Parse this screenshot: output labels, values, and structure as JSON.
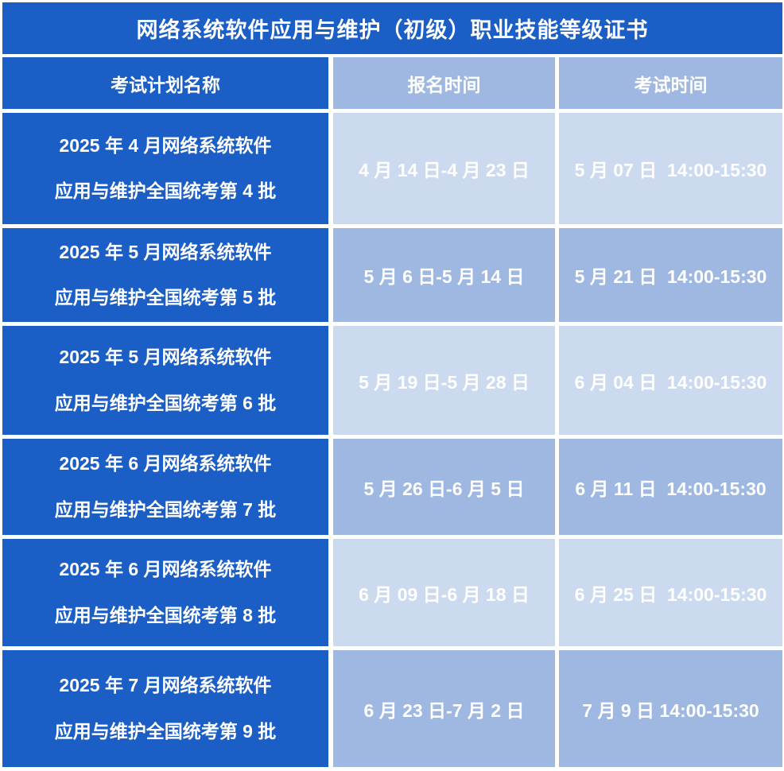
{
  "title": "网络系统软件应用与维护（初级）职业技能等级证书",
  "columns": {
    "plan_name": "考试计划名称",
    "registration_time": "报名时间",
    "exam_time": "考试时间"
  },
  "rows": [
    {
      "plan_line1": "2025 年 4 月网络系统软件",
      "plan_line2": "应用与维护全国统考第 4 批",
      "registration": "4 月 14 日-4 月 23 日",
      "exam": "5 月 07 日  14:00-15:30"
    },
    {
      "plan_line1": "2025 年 5 月网络系统软件",
      "plan_line2": "应用与维护全国统考第 5 批",
      "registration": "5 月 6 日-5 月 14 日",
      "exam": "5 月 21 日  14:00-15:30"
    },
    {
      "plan_line1": "2025 年 5 月网络系统软件",
      "plan_line2": "应用与维护全国统考第 6 批",
      "registration": "5 月 19 日-5 月 28 日",
      "exam": "6 月 04 日  14:00-15:30"
    },
    {
      "plan_line1": "2025 年 6 月网络系统软件",
      "plan_line2": "应用与维护全国统考第 7 批",
      "registration": "5 月 26 日-6 月 5 日",
      "exam": "6 月 11 日  14:00-15:30"
    },
    {
      "plan_line1": "2025 年 6 月网络系统软件",
      "plan_line2": "应用与维护全国统考第 8 批",
      "registration": "6 月 09 日-6 月 18 日",
      "exam": "6 月 25 日  14:00-15:30"
    },
    {
      "plan_line1": "2025 年 7 月网络系统软件",
      "plan_line2": "应用与维护全国统考第 9 批",
      "registration": "6 月 23 日-7 月 2 日",
      "exam": "7 月 9 日 14:00-15:30"
    }
  ],
  "colors": {
    "dark_blue": "#1b5ec6",
    "medium_blue": "#9fb8e2",
    "light_blue": "#ccdaef",
    "text": "#ffffff",
    "grid_line": "#ffffff"
  }
}
